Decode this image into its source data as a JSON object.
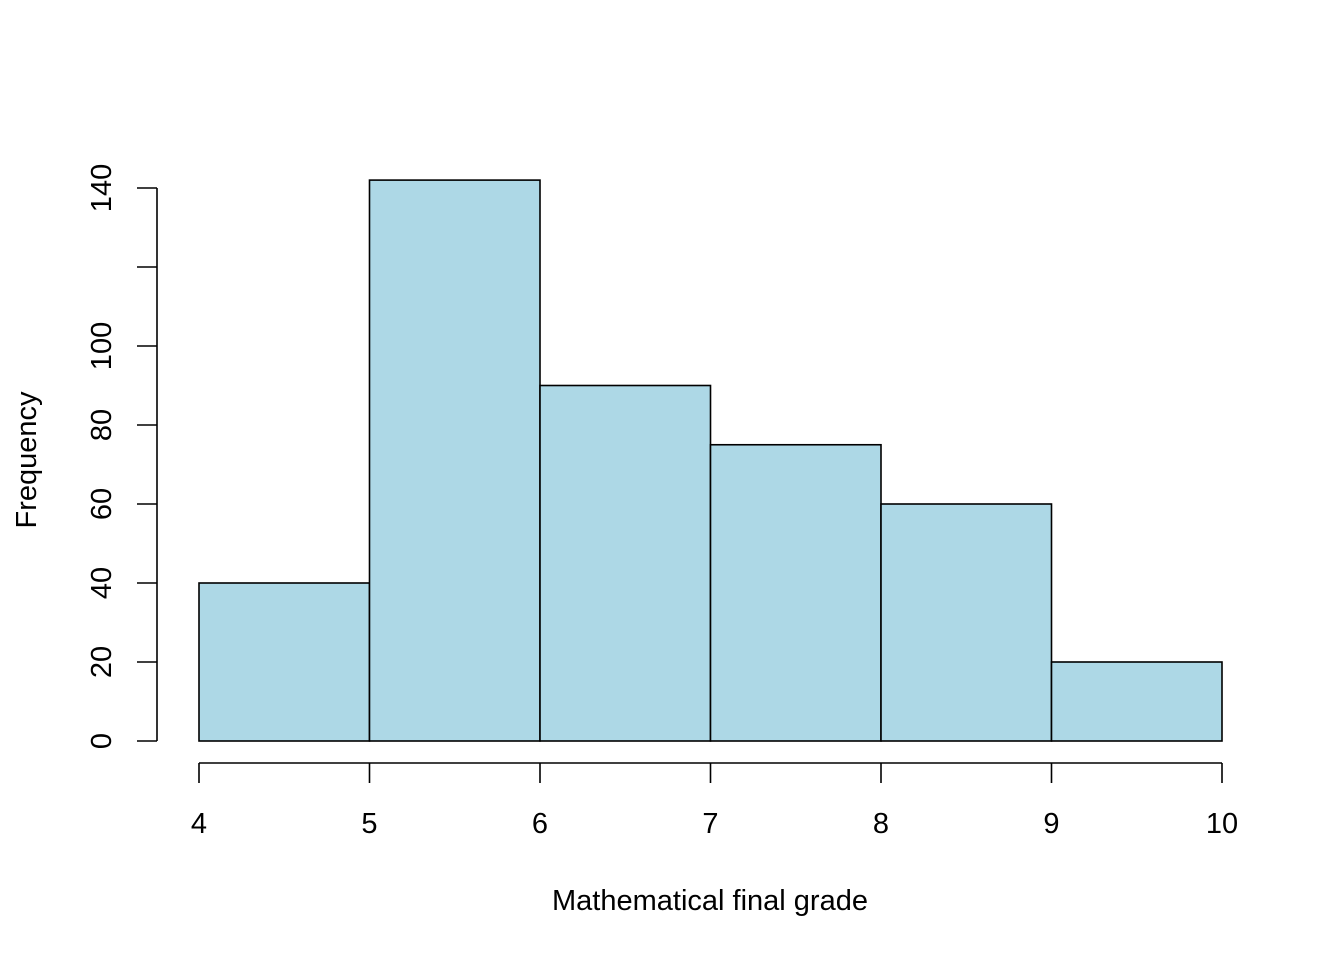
{
  "chart_data": {
    "type": "bar",
    "subtype": "histogram",
    "title": "",
    "xlabel": "Mathematical final grade",
    "ylabel": "Frequency",
    "bins": [
      {
        "from": 4,
        "to": 5,
        "value": 40
      },
      {
        "from": 5,
        "to": 6,
        "value": 142
      },
      {
        "from": 6,
        "to": 7,
        "value": 90
      },
      {
        "from": 7,
        "to": 8,
        "value": 75
      },
      {
        "from": 8,
        "to": 9,
        "value": 60
      },
      {
        "from": 9,
        "to": 10,
        "value": 20
      }
    ],
    "x_ticks": [
      4,
      5,
      6,
      7,
      8,
      9,
      10
    ],
    "y_ticks": [
      0,
      20,
      40,
      60,
      80,
      100,
      120,
      140
    ],
    "y_tick_labels": [
      "0",
      "20",
      "40",
      "60",
      "80",
      "100",
      "",
      "140"
    ],
    "xlim": [
      4,
      10
    ],
    "ylim": [
      0,
      140
    ],
    "grid": false,
    "bar_color": "#ADD8E6",
    "edge_color": "#000000"
  }
}
